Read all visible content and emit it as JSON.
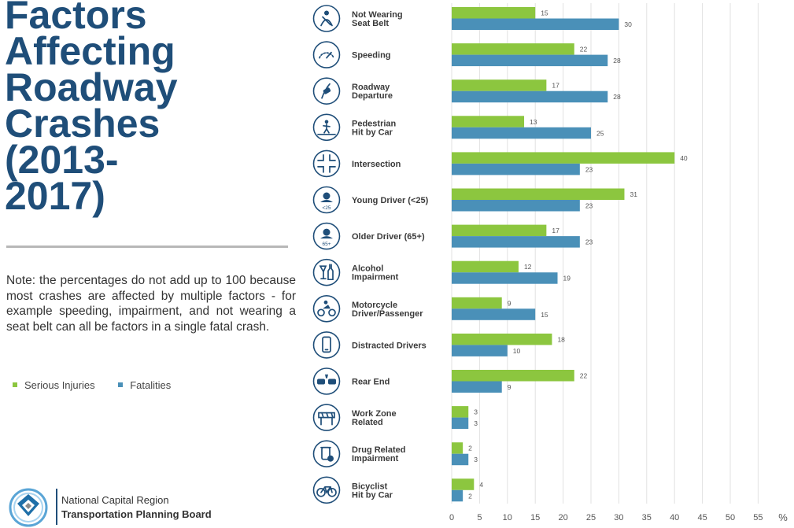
{
  "title_lines": [
    "Factors",
    "Affecting",
    "Roadway",
    "Crashes",
    "(2013-",
    "2017)"
  ],
  "note": "Note: the percentages do not add up to 100 because most crashes are affected by multiple factors - for example speeding, impairment, and not wearing a seat belt can all be factors in a single fatal crash.",
  "organization": {
    "line1": "National Capital Region",
    "line2": "Transportation Planning Board"
  },
  "colors": {
    "serious_injuries": "#8cc63f",
    "fatalities": "#4a90b8",
    "title": "#1f4e79",
    "gridline": "#e2e2e2",
    "icon": "#1f4e79"
  },
  "chart_data": {
    "type": "bar",
    "orientation": "horizontal",
    "categories": [
      {
        "lines": [
          "Not Wearing",
          "Seat Belt"
        ],
        "icon": "seat-belt-icon"
      },
      {
        "lines": [
          "Speeding"
        ],
        "icon": "speedometer-icon"
      },
      {
        "lines": [
          "Roadway",
          "Departure"
        ],
        "icon": "roadway-departure-icon"
      },
      {
        "lines": [
          "Pedestrian",
          "Hit by Car"
        ],
        "icon": "pedestrian-icon"
      },
      {
        "lines": [
          "Intersection"
        ],
        "icon": "intersection-icon"
      },
      {
        "lines": [
          "Young Driver (<25)"
        ],
        "icon": "young-driver-icon",
        "icon_text": "<25"
      },
      {
        "lines": [
          "Older Driver (65+)"
        ],
        "icon": "older-driver-icon",
        "icon_text": "65+"
      },
      {
        "lines": [
          "Alcohol",
          "Impairment"
        ],
        "icon": "alcohol-icon"
      },
      {
        "lines": [
          "Motorcycle",
          "Driver/Passenger"
        ],
        "icon": "motorcycle-icon"
      },
      {
        "lines": [
          "Distracted Drivers"
        ],
        "icon": "phone-icon"
      },
      {
        "lines": [
          "Rear End"
        ],
        "icon": "rear-end-icon"
      },
      {
        "lines": [
          "Work Zone",
          "Related"
        ],
        "icon": "work-zone-icon"
      },
      {
        "lines": [
          "Drug Related",
          "Impairment"
        ],
        "icon": "drug-icon"
      },
      {
        "lines": [
          "Bicyclist",
          "Hit by Car"
        ],
        "icon": "bicycle-icon"
      }
    ],
    "series": [
      {
        "name": "Serious Injuries",
        "values": [
          15,
          22,
          17,
          13,
          40,
          31,
          17,
          12,
          9,
          18,
          22,
          3,
          2,
          4
        ]
      },
      {
        "name": "Fatalities",
        "values": [
          30,
          28,
          28,
          25,
          23,
          23,
          23,
          19,
          15,
          10,
          9,
          3,
          3,
          2
        ]
      }
    ],
    "xlim": [
      0,
      60
    ],
    "xticks": [
      0,
      5,
      10,
      15,
      20,
      25,
      30,
      35,
      40,
      45,
      50,
      55
    ],
    "unit": "%",
    "legend_position": "bottom-left"
  }
}
